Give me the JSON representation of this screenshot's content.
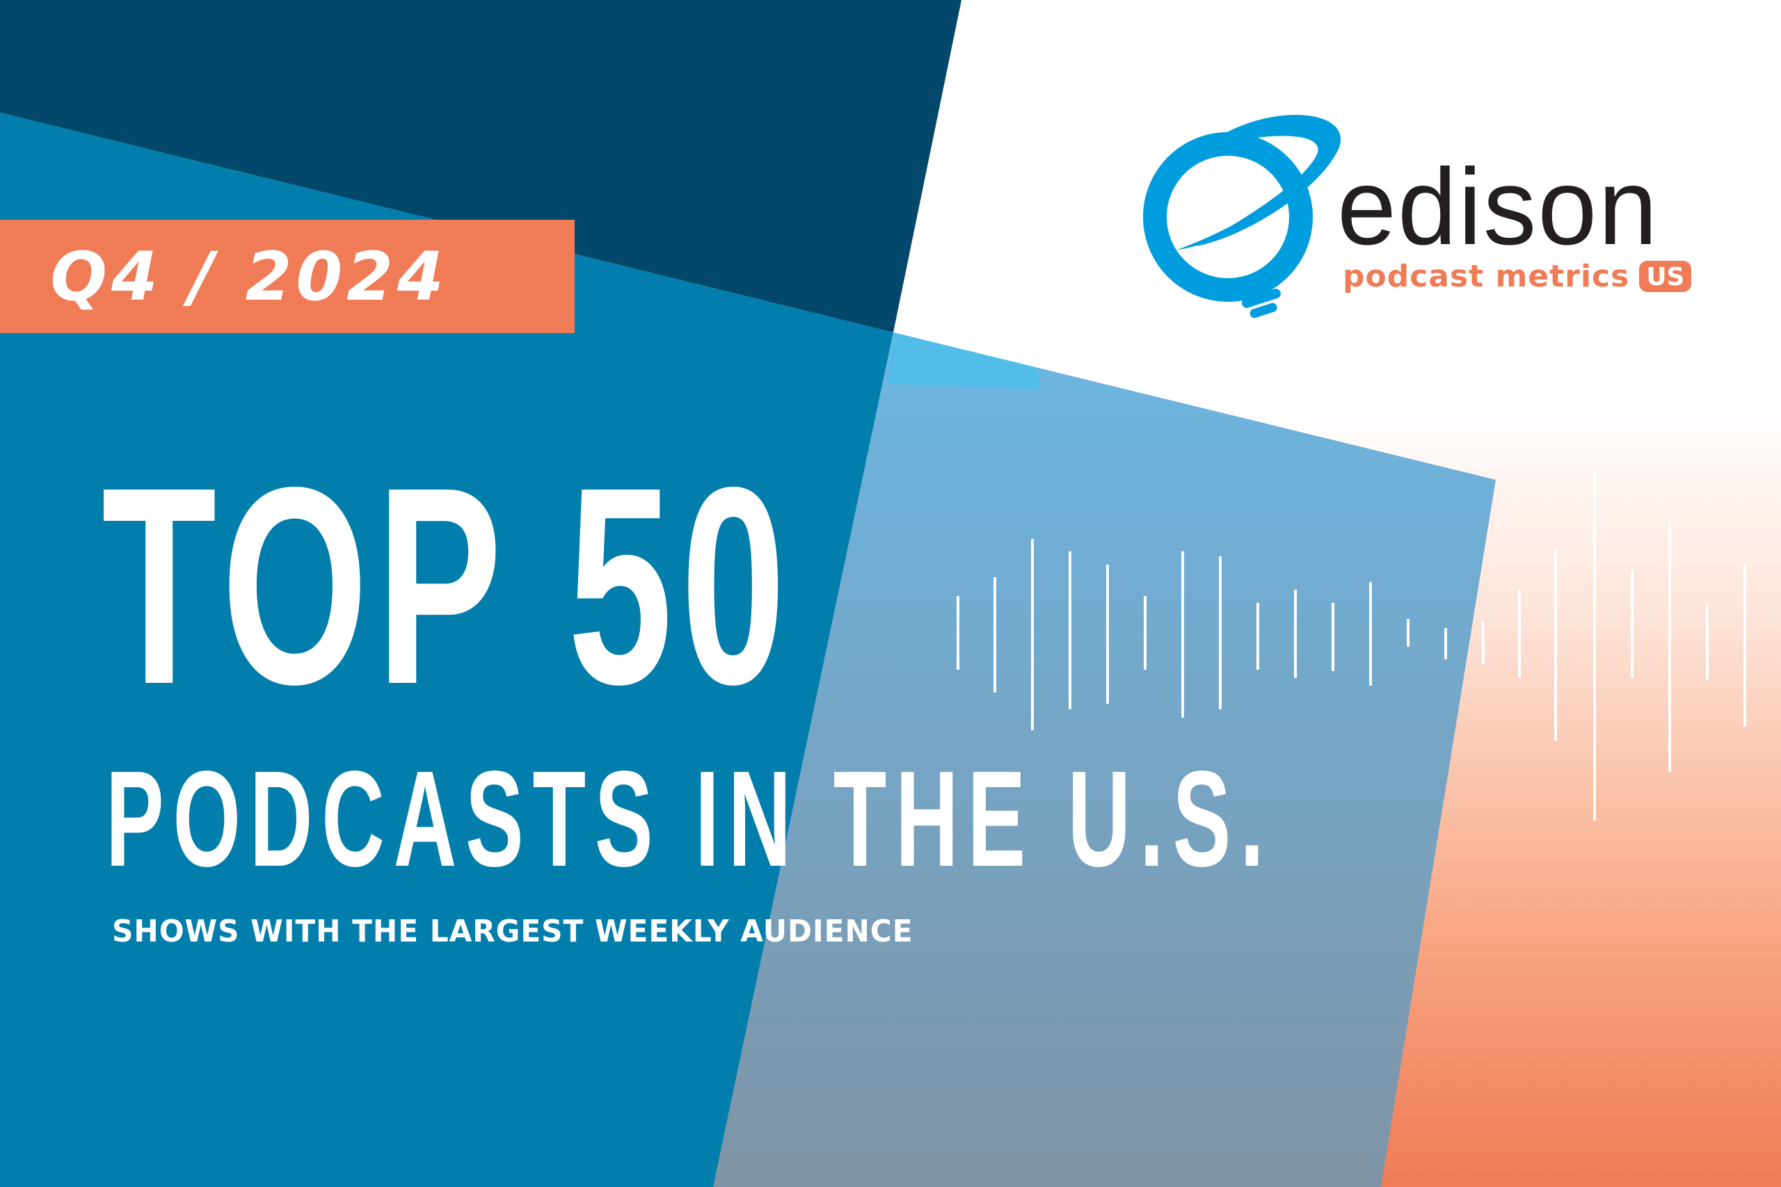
{
  "badge": {
    "label": "Q4 / 2024"
  },
  "headline": {
    "main": "TOP 50",
    "sub": "PODCASTS IN THE U.S.",
    "tagline": "SHOWS WITH THE LARGEST WEEKLY AUDIENCE"
  },
  "logo": {
    "wordmark": "edison",
    "tagline": "podcast metrics",
    "region": "US",
    "icon": "edison-lightbulb-orbit-icon"
  },
  "decoration": {
    "waveform_icon": "audio-waveform-icon"
  },
  "colors": {
    "navy": "#03476a",
    "blue": "#027eac",
    "light_blue": "#6cb6e2",
    "sky": "#52bde9",
    "coral": "#f07b57",
    "white": "#ffffff",
    "text_dark": "#231f20"
  }
}
